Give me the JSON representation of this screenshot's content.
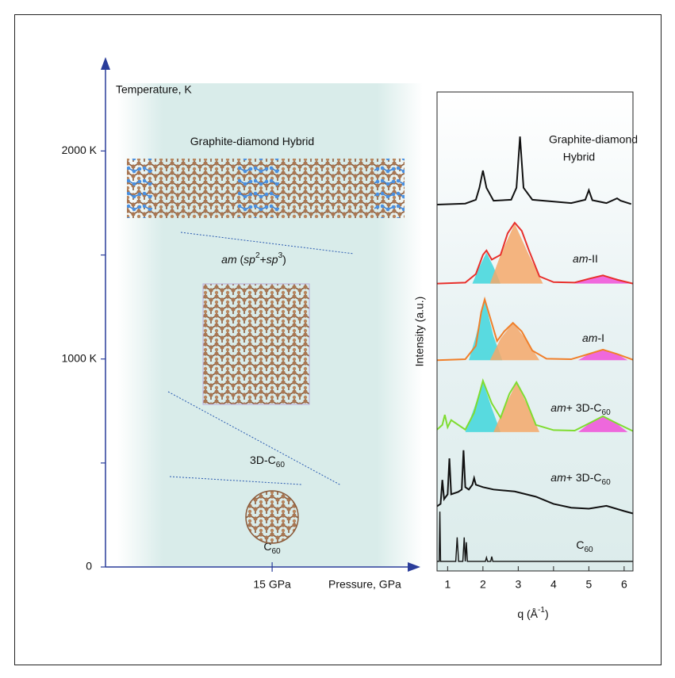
{
  "chart_data": [
    {
      "type": "phase-diagram",
      "xlabel": "Pressure, GPa",
      "ylabel": "Temperature, K",
      "xlim": [
        0,
        28.2
      ],
      "ylim": [
        0,
        2440
      ],
      "xticks": [
        {
          "value": 15,
          "label": "15 GPa"
        }
      ],
      "yticks": [
        0,
        {
          "value": 500,
          "label": null
        },
        {
          "value": 1000,
          "label": "1000 K"
        },
        {
          "value": 1500,
          "label": null
        },
        {
          "value": 2000,
          "label": "2000 K"
        }
      ],
      "phases": [
        {
          "label": [
            "Graphite-diamond Hybrid"
          ]
        },
        {
          "label": [
            "am",
            " (",
            "sp",
            "2",
            "+",
            "sp",
            "3",
            ")"
          ]
        },
        {
          "label": [
            "3D-C",
            "60"
          ]
        },
        {
          "label": [
            "C",
            "60"
          ]
        }
      ]
    },
    {
      "type": "line",
      "ylabel": "Intensity (a.u.)",
      "xlabel": [
        "q (Å",
        "-1",
        ")"
      ],
      "xlim": [
        0.7,
        6.25
      ],
      "ylim": [
        0,
        100
      ],
      "xticks": [
        1,
        2,
        3,
        4,
        5,
        6
      ],
      "series": [
        {
          "name": [
            "Graphite-diamond",
            "Hybrid"
          ],
          "color": "#111111",
          "x": [
            0.7,
            1.5,
            1.8,
            1.9,
            2.0,
            2.1,
            2.3,
            2.8,
            2.95,
            3.05,
            3.15,
            3.4,
            4.5,
            4.9,
            5.0,
            5.1,
            5.5,
            5.8,
            5.9,
            6.2
          ],
          "values": [
            76.5,
            76.7,
            77.5,
            80,
            83.6,
            80,
            77.3,
            77.5,
            80,
            90.7,
            80,
            77.5,
            76.8,
            77.5,
            79.5,
            77.4,
            76.8,
            77.8,
            77.3,
            76.6
          ]
        },
        {
          "name": [
            "am",
            "-II"
          ],
          "color": "#e8302c",
          "x": [
            0.7,
            1.5,
            1.8,
            2.0,
            2.1,
            2.25,
            2.5,
            2.7,
            2.9,
            3.1,
            3.3,
            3.6,
            4.0,
            4.6,
            5.0,
            5.4,
            5.8,
            6.25
          ],
          "values": [
            60,
            60.2,
            62,
            66,
            66.9,
            65,
            66,
            70.5,
            72.7,
            71,
            67,
            61.5,
            60.3,
            60.2,
            61,
            61.7,
            60.8,
            60
          ]
        },
        {
          "name": [
            "am",
            "-I"
          ],
          "color": "#f07f2a",
          "x": [
            0.7,
            1.5,
            1.8,
            1.95,
            2.05,
            2.2,
            2.4,
            2.6,
            2.85,
            3.1,
            3.4,
            3.8,
            4.5,
            5.0,
            5.4,
            5.8,
            6.25
          ],
          "values": [
            44,
            44.2,
            47,
            54,
            56.7,
            53,
            48,
            50,
            51.8,
            50,
            46,
            44.3,
            44.2,
            45.3,
            46.2,
            45.3,
            44.1
          ]
        },
        {
          "name": [
            "am",
            "+ 3D-C",
            "60"
          ],
          "color": "#7fdc30",
          "x": [
            0.7,
            0.85,
            0.92,
            1.0,
            1.1,
            1.5,
            1.75,
            2.0,
            2.25,
            2.5,
            2.75,
            2.95,
            3.2,
            3.5,
            4.0,
            4.6,
            5.0,
            5.4,
            5.8,
            6.25
          ],
          "values": [
            29.5,
            30.5,
            32.6,
            30,
            31.5,
            29.5,
            33,
            39.7,
            35,
            32,
            37,
            39.4,
            36,
            30.5,
            29.4,
            29.3,
            30.8,
            32.3,
            30.8,
            29.2
          ]
        },
        {
          "name": [
            "am",
            "+ 3D-C",
            "60"
          ],
          "color": "#111111",
          "x": [
            0.7,
            0.8,
            0.85,
            0.9,
            1.0,
            1.05,
            1.1,
            1.3,
            1.4,
            1.45,
            1.5,
            1.6,
            1.7,
            1.75,
            1.8,
            2.0,
            2.3,
            2.9,
            3.5,
            4.0,
            4.5,
            5.0,
            5.5,
            6.0,
            6.25
          ],
          "values": [
            13.5,
            14,
            19,
            15,
            16,
            23.5,
            16,
            16.5,
            17,
            25.2,
            17.5,
            17,
            18,
            19.4,
            18,
            17.5,
            17,
            16.6,
            15.5,
            14,
            13.2,
            13,
            13.6,
            12.5,
            12
          ]
        },
        {
          "name": [
            "C",
            "60"
          ],
          "color": "#111111",
          "x": [
            0.7,
            0.76,
            0.78,
            0.8,
            1.23,
            1.27,
            1.31,
            1.43,
            1.47,
            1.5,
            1.53,
            1.56,
            2.07,
            2.1,
            2.13,
            2.22,
            2.25,
            2.28,
            6.25
          ],
          "values": [
            2,
            2,
            12.4,
            2,
            2,
            7,
            2,
            2,
            7,
            2,
            6,
            2,
            2,
            2.8,
            2,
            2,
            3,
            2,
            2
          ]
        }
      ],
      "fits": [
        {
          "color": "#3fd6dc",
          "x": [
            1.7,
            1.9,
            2.1,
            2.3,
            2.5
          ],
          "values": [
            60,
            63.5,
            66.5,
            63.5,
            60
          ]
        },
        {
          "color": "#f5a86a",
          "x": [
            2.2,
            2.5,
            2.9,
            3.3,
            3.7
          ],
          "values": [
            60,
            66,
            72.5,
            66,
            60
          ]
        },
        {
          "color": "#f050d8",
          "x": [
            4.6,
            5.0,
            5.4,
            5.8,
            6.2
          ],
          "values": [
            60,
            61,
            61.7,
            61,
            60
          ]
        },
        {
          "color": "#3fd6dc",
          "x": [
            1.6,
            1.8,
            2.05,
            2.3,
            2.55
          ],
          "values": [
            44,
            49,
            56.5,
            49,
            44
          ]
        },
        {
          "color": "#f5a86a",
          "x": [
            2.2,
            2.5,
            2.85,
            3.2,
            3.6
          ],
          "values": [
            44,
            48.5,
            51.8,
            48.5,
            44
          ]
        },
        {
          "color": "#f050d8",
          "x": [
            4.7,
            5.05,
            5.4,
            5.75,
            6.1
          ],
          "values": [
            44,
            45.5,
            46.2,
            45.5,
            44
          ]
        },
        {
          "color": "#3fd6dc",
          "x": [
            1.5,
            1.75,
            2.0,
            2.25,
            2.5
          ],
          "values": [
            29,
            34,
            39.5,
            34,
            29
          ]
        },
        {
          "color": "#f5a86a",
          "x": [
            2.3,
            2.6,
            2.95,
            3.3,
            3.6
          ],
          "values": [
            29,
            34,
            39.3,
            34,
            29
          ]
        },
        {
          "color": "#f050d8",
          "x": [
            4.7,
            5.05,
            5.4,
            5.75,
            6.1
          ],
          "values": [
            29,
            31,
            32.3,
            31,
            29
          ]
        }
      ]
    }
  ]
}
